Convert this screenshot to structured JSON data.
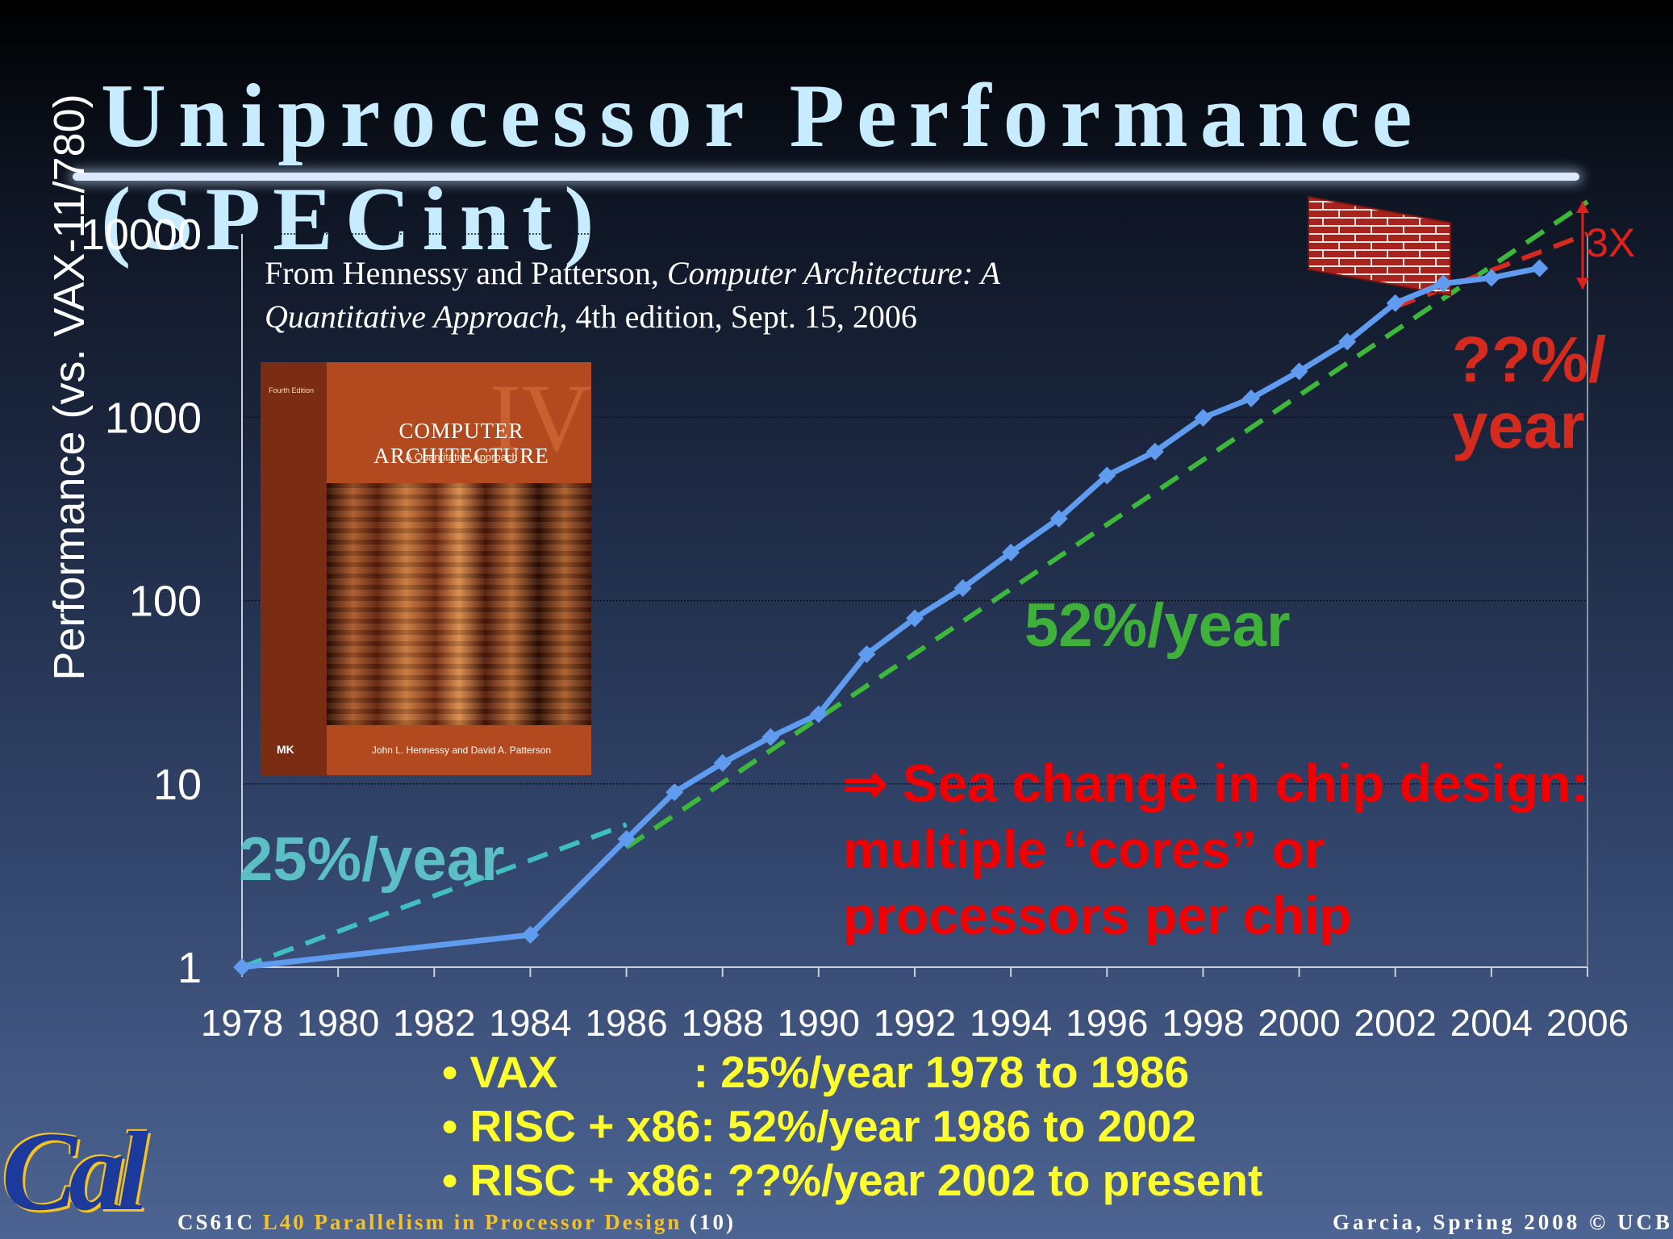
{
  "slide": {
    "title": "Uniprocessor Performance (SPECint)",
    "source_plain": "From Hennessy and Patterson,",
    "source_italic_1": "Computer Architecture: A Quantitative Approach",
    "source_rest": ", 4th edition, Sept. 15, 2006",
    "book_cover": {
      "edition": "Fourth Edition",
      "title": "Computer Architecture",
      "subtitle": "A Quantitative Approach",
      "authors": "John L. Hennessy and David A. Patterson",
      "publisher": "MK",
      "roman": "IV"
    },
    "annotations": {
      "rate_low": "25%/year",
      "rate_mid": "52%/year",
      "rate_high_line1": "??%/",
      "rate_high_line2": "year",
      "gap": "3X",
      "sea_change": "⇒ Sea change in chip design: multiple “cores” or processors per chip"
    },
    "summary": [
      "VAX           : 25%/year 1978 to 1986",
      "RISC + x86: 52%/year 1986 to 2002",
      "RISC + x86: ??%/year 2002 to present"
    ],
    "footer": {
      "course": "CS61C",
      "lecture": "L40 Parallelism in Processor Design",
      "page": "(10)",
      "right": "Garcia, Spring 2008 © UCB"
    },
    "logo_text": "Cal"
  },
  "chart_data": {
    "type": "line",
    "ylabel": "Performance (vs. VAX-11/780)",
    "xlabel": "",
    "yscale": "log",
    "ylim": [
      1,
      10000
    ],
    "xlim": [
      1978,
      2006
    ],
    "x_ticks": [
      1978,
      1980,
      1982,
      1984,
      1986,
      1988,
      1990,
      1992,
      1994,
      1996,
      1998,
      2000,
      2002,
      2004,
      2006
    ],
    "y_ticks": [
      1,
      10,
      100,
      1000,
      10000
    ],
    "y_tick_labels": [
      "1",
      "10",
      "100",
      "1000",
      "10000"
    ],
    "grid": "horizontal",
    "series": [
      {
        "color": "#5f9cf0",
        "x": [
          1978,
          1984,
          1986,
          1987,
          1988,
          1989,
          1990,
          1991,
          1992,
          1993,
          1994,
          1995,
          1996,
          1997,
          1998,
          1999,
          2000,
          2001,
          2002,
          2003,
          2004,
          2005
        ],
        "y": [
          1,
          1.5,
          5,
          9,
          13,
          18,
          24,
          51,
          80,
          117,
          183,
          280,
          481,
          649,
          993,
          1267,
          1779,
          2584,
          4195,
          5364,
          5764,
          6505
        ]
      }
    ],
    "trendlines": [
      {
        "label": "25%/year",
        "color": "#3fbfbf",
        "x": [
          1978,
          1986
        ],
        "y": [
          1,
          6
        ]
      },
      {
        "label": "52%/year",
        "color": "#3cb83a",
        "x": [
          1986,
          2006
        ],
        "y": [
          4.5,
          15000
        ]
      },
      {
        "label": "??%/year",
        "color": "#d52b1e",
        "x": [
          2002,
          2006
        ],
        "y": [
          4000,
          10000
        ]
      }
    ],
    "annotation_gap": {
      "label": "3X",
      "x": 2006,
      "y_low": 5000,
      "y_high": 15000
    }
  }
}
